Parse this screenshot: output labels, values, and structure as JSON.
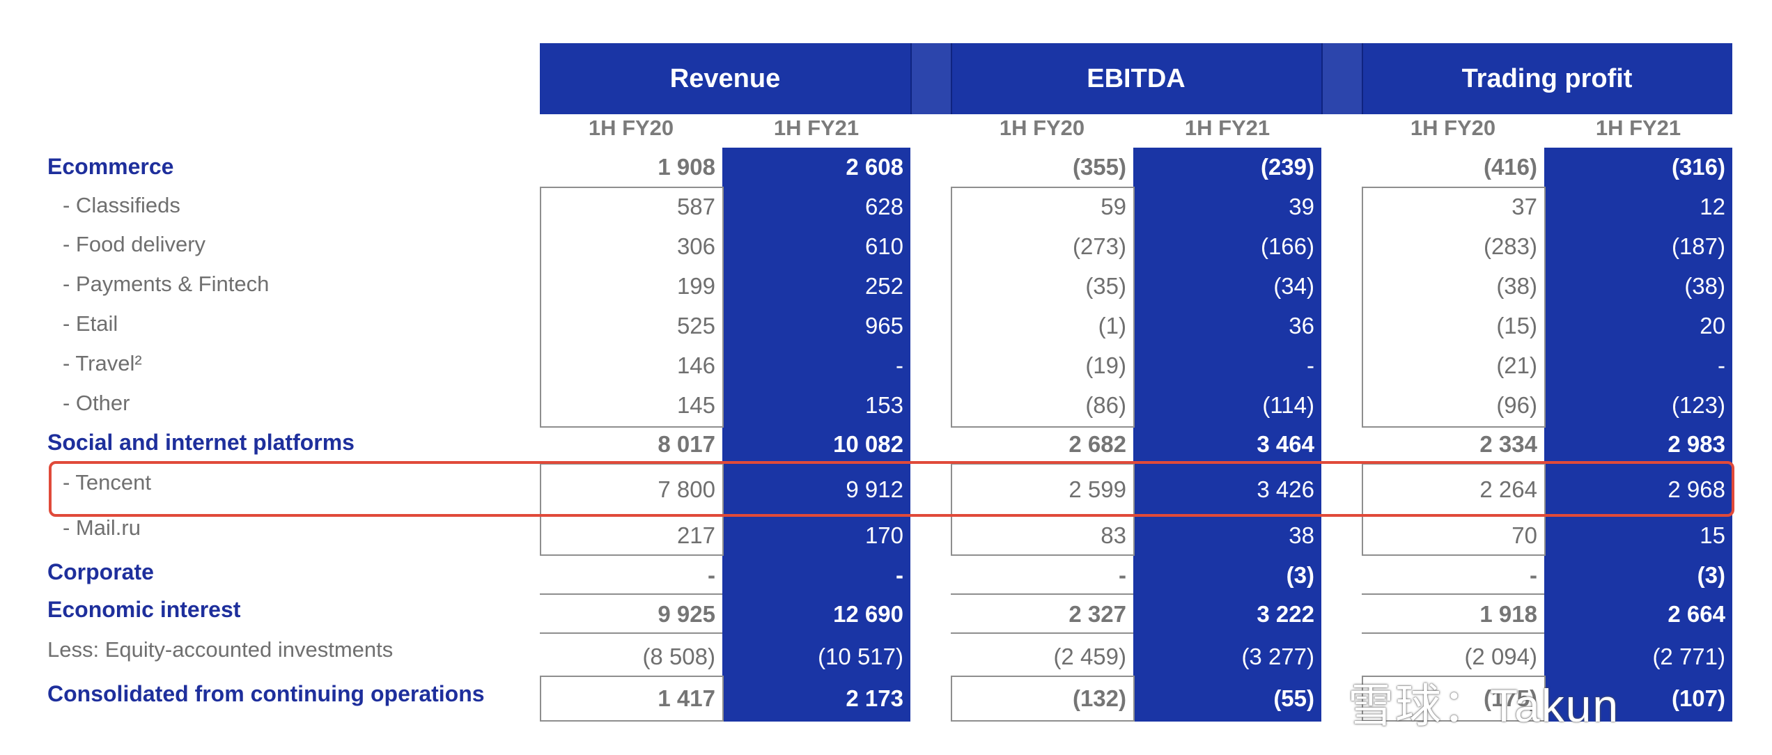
{
  "headers": {
    "groups": [
      "Revenue",
      "EBITDA",
      "Trading profit"
    ],
    "periods": [
      "1H FY20",
      "1H FY21"
    ]
  },
  "rows": [
    {
      "label": "Ecommerce",
      "bold": true,
      "values": [
        "1 908",
        "2 608",
        "(355)",
        "(239)",
        "(416)",
        "(316)"
      ]
    },
    {
      "label": "- Classifieds",
      "bold": false,
      "values": [
        "587",
        "628",
        "59",
        "39",
        "37",
        "12"
      ]
    },
    {
      "label": "- Food delivery",
      "bold": false,
      "values": [
        "306",
        "610",
        "(273)",
        "(166)",
        "(283)",
        "(187)"
      ]
    },
    {
      "label": "- Payments & Fintech",
      "bold": false,
      "values": [
        "199",
        "252",
        "(35)",
        "(34)",
        "(38)",
        "(38)"
      ]
    },
    {
      "label": "- Etail",
      "bold": false,
      "values": [
        "525",
        "965",
        "(1)",
        "36",
        "(15)",
        "20"
      ]
    },
    {
      "label": "- Travel²",
      "bold": false,
      "values": [
        "146",
        "-",
        "(19)",
        "-",
        "(21)",
        "-"
      ]
    },
    {
      "label": "- Other",
      "bold": false,
      "values": [
        "145",
        "153",
        "(86)",
        "(114)",
        "(96)",
        "(123)"
      ]
    },
    {
      "label": "Social and internet platforms",
      "bold": true,
      "values": [
        "8 017",
        "10 082",
        "2 682",
        "3 464",
        "2 334",
        "2 983"
      ]
    },
    {
      "label": "- Tencent",
      "bold": false,
      "values": [
        "7 800",
        "9 912",
        "2 599",
        "3 426",
        "2 264",
        "2 968"
      ]
    },
    {
      "label": "- Mail.ru",
      "bold": false,
      "values": [
        "217",
        "170",
        "83",
        "38",
        "70",
        "15"
      ]
    },
    {
      "label": "Corporate",
      "bold": true,
      "values": [
        "-",
        "-",
        "-",
        "(3)",
        "-",
        "(3)"
      ]
    },
    {
      "label": "Economic interest",
      "bold": true,
      "values": [
        "9 925",
        "12 690",
        "2 327",
        "3 222",
        "1 918",
        "2 664"
      ]
    },
    {
      "label": "Less: Equity-accounted investments",
      "bold": false,
      "values": [
        "(8 508)",
        "(10 517)",
        "(2 459)",
        "(3 277)",
        "(2 094)",
        "(2 771)"
      ]
    },
    {
      "label": "Consolidated from continuing operations",
      "bold": true,
      "values": [
        "1 417",
        "2 173",
        "(132)",
        "(55)",
        "(175)",
        "(107)"
      ]
    }
  ],
  "watermark": "雪球：Takun",
  "colors": {
    "accent_blue": "#1a35a5",
    "highlight": "#e04a3a",
    "label_blue": "#1e2f9c"
  }
}
